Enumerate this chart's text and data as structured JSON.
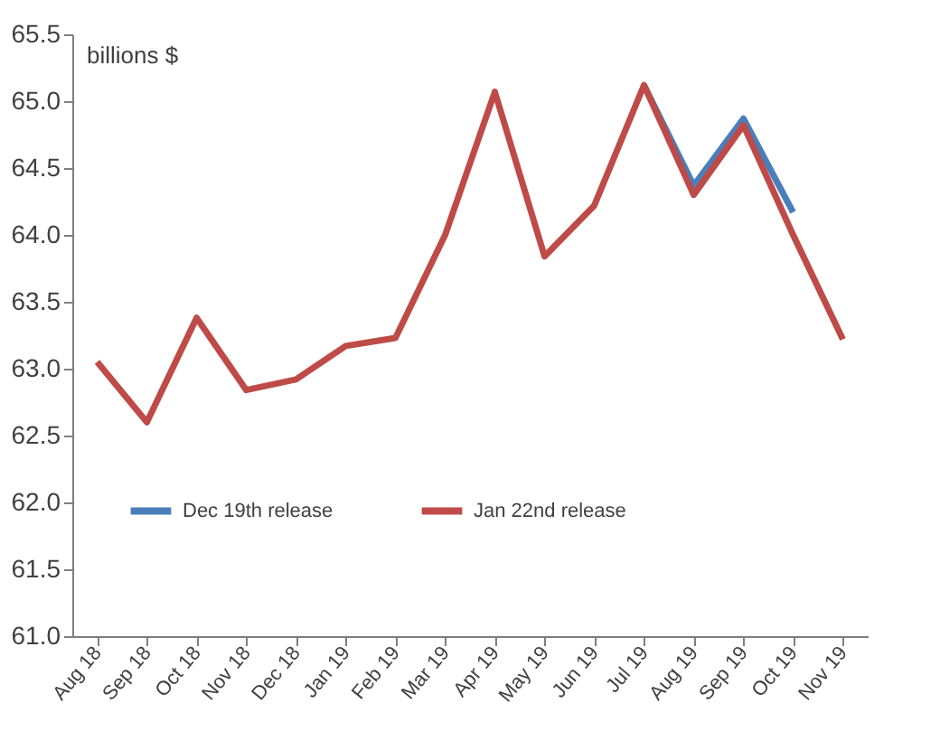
{
  "chart_data": {
    "type": "line",
    "categories": [
      "Aug 18",
      "Sep 18",
      "Oct 18",
      "Nov 18",
      "Dec 18",
      "Jan 19",
      "Feb 19",
      "Mar 19",
      "Apr 19",
      "May 19",
      "Jun 19",
      "Jul 19",
      "Aug 19",
      "Sep 19",
      "Oct 19",
      "Nov 19"
    ],
    "series": [
      {
        "name": "Dec 19th release",
        "color": "#4a7ebb",
        "values": [
          null,
          null,
          null,
          null,
          null,
          null,
          null,
          null,
          null,
          null,
          null,
          65.12,
          64.37,
          64.87,
          64.17,
          null
        ]
      },
      {
        "name": "Jan 22nd release",
        "color": "#be4b48",
        "values": [
          63.05,
          62.6,
          63.38,
          62.84,
          62.92,
          63.17,
          63.23,
          64.0,
          65.07,
          63.84,
          64.22,
          65.12,
          64.3,
          64.82,
          64.0,
          63.22
        ]
      }
    ],
    "ylim": [
      61.0,
      65.5
    ],
    "yticks": [
      {
        "value": 61.0,
        "label": "61.0"
      },
      {
        "value": 61.5,
        "label": "61.5"
      },
      {
        "value": 62.0,
        "label": "62.0"
      },
      {
        "value": 62.5,
        "label": "62.5"
      },
      {
        "value": 63.0,
        "label": "63.0"
      },
      {
        "value": 63.5,
        "label": "63.5"
      },
      {
        "value": 64.0,
        "label": "64.0"
      },
      {
        "value": 64.5,
        "label": "64.5"
      },
      {
        "value": 65.0,
        "label": "65.0"
      },
      {
        "value": 65.5,
        "label": "65.5"
      }
    ],
    "annotations": [
      "billions $"
    ],
    "grid": false,
    "legend": "bottom",
    "marker": "none",
    "line_style": "solid"
  }
}
